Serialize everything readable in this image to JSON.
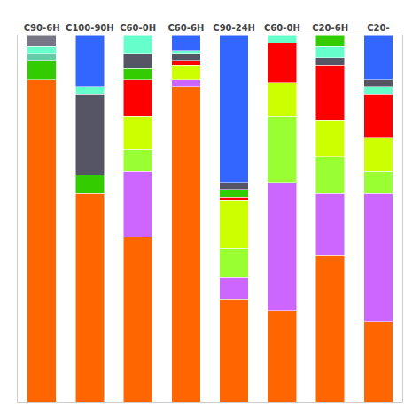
{
  "chart_data": {
    "type": "bar",
    "stacked": true,
    "grid": false,
    "tick_labels": "x",
    "categories": [
      "C90-6H",
      "C100-90H",
      "C60-0H",
      "C60-6H",
      "C90-24H",
      "C60-0H",
      "C20-6H",
      "C20-"
    ],
    "ylim": [
      0,
      100
    ],
    "series": [
      {
        "values": [
          88,
          57,
          45,
          86,
          28,
          25,
          40,
          22
        ],
        "colors": [
          "#FF6600",
          "#FF6600",
          "#FF6600",
          "#FF6600",
          "#FF6600",
          "#FF6600",
          "#FF6600",
          "#FF6600"
        ]
      },
      {
        "values": [
          5,
          5,
          18,
          2,
          6,
          35,
          17,
          35
        ],
        "colors": [
          "#33CC00",
          "#33CC00",
          "#CC66FF",
          "#CC66FF",
          "#CC66FF",
          "#CC66FF",
          "#CC66FF",
          "#CC66FF"
        ]
      },
      {
        "values": [
          2,
          22,
          6,
          4,
          8,
          18,
          10,
          6
        ],
        "colors": [
          "#66CCAA",
          "#555566",
          "#99FF33",
          "#CCFF00",
          "#99FF33",
          "#99FF33",
          "#99FF33",
          "#99FF33"
        ]
      },
      {
        "values": [
          2,
          2,
          9,
          1,
          13,
          9,
          10,
          9
        ],
        "colors": [
          "#66FFCC",
          "#66FFCC",
          "#CCFF00",
          "#FF0000",
          "#CCFF00",
          "#CCFF00",
          "#CCFF00",
          "#CCFF00"
        ]
      },
      {
        "values": [
          3,
          14,
          10,
          2,
          1,
          11,
          15,
          12
        ],
        "colors": [
          "#777788",
          "#3366FF",
          "#FF0000",
          "#555566",
          "#FF0000",
          "#FF0000",
          "#FF0000",
          "#FF0000"
        ]
      },
      {
        "values": [
          null,
          null,
          3,
          1,
          2,
          2,
          2,
          2
        ],
        "colors": [
          null,
          null,
          "#33CC00",
          "#66FFCC",
          "#33CC00",
          "#66FFCC",
          "#555566",
          "#66FFCC"
        ]
      },
      {
        "values": [
          null,
          null,
          4,
          4,
          2,
          null,
          3,
          2
        ],
        "colors": [
          null,
          null,
          "#555566",
          "#3366FF",
          "#555566",
          null,
          "#66FFCC",
          "#555566"
        ]
      },
      {
        "values": [
          null,
          null,
          5,
          null,
          40,
          null,
          3,
          12
        ],
        "colors": [
          null,
          null,
          "#66FFCC",
          null,
          "#3366FF",
          null,
          "#33CC00",
          "#3366FF"
        ]
      }
    ]
  }
}
